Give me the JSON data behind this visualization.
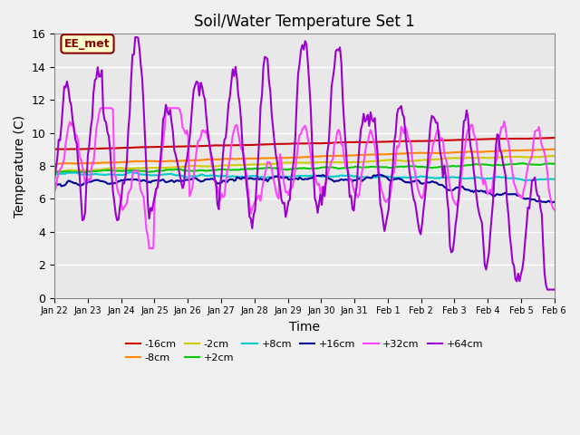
{
  "title": "Soil/Water Temperature Set 1",
  "xlabel": "Time",
  "ylabel": "Temperature (C)",
  "ylim": [
    0,
    16
  ],
  "xlim": [
    0,
    15
  ],
  "background_color": "#e8e8e8",
  "grid_color": "#ffffff",
  "label_box_text": "EE_met",
  "label_box_facecolor": "#ffffcc",
  "label_box_edgecolor": "#8B0000",
  "xtick_labels": [
    "Jan 22",
    "Jan 23",
    "Jan 24",
    "Jan 25",
    "Jan 26",
    "Jan 27",
    "Jan 28",
    "Jan 29",
    "Jan 30",
    "Jan 31",
    "Feb 1",
    "Feb 2",
    "Feb 3",
    "Feb 4",
    "Feb 5",
    "Feb 6"
  ],
  "series": {
    "m16cm": {
      "label": "-16cm",
      "color": "#cc0000",
      "lw": 1.5
    },
    "m8cm": {
      "label": "-8cm",
      "color": "#ff8800",
      "lw": 1.5
    },
    "m2cm": {
      "label": "-2cm",
      "color": "#cccc00",
      "lw": 1.5
    },
    "p2cm": {
      "label": "+2cm",
      "color": "#00cc00",
      "lw": 1.5
    },
    "p8cm": {
      "label": "+8cm",
      "color": "#00cccc",
      "lw": 1.5
    },
    "p16cm": {
      "label": "+16cm",
      "color": "#000099",
      "lw": 1.5
    },
    "p32cm": {
      "label": "+32cm",
      "color": "#ff44ff",
      "lw": 1.5
    },
    "p64cm": {
      "label": "+64cm",
      "color": "#9900cc",
      "lw": 1.5
    }
  }
}
